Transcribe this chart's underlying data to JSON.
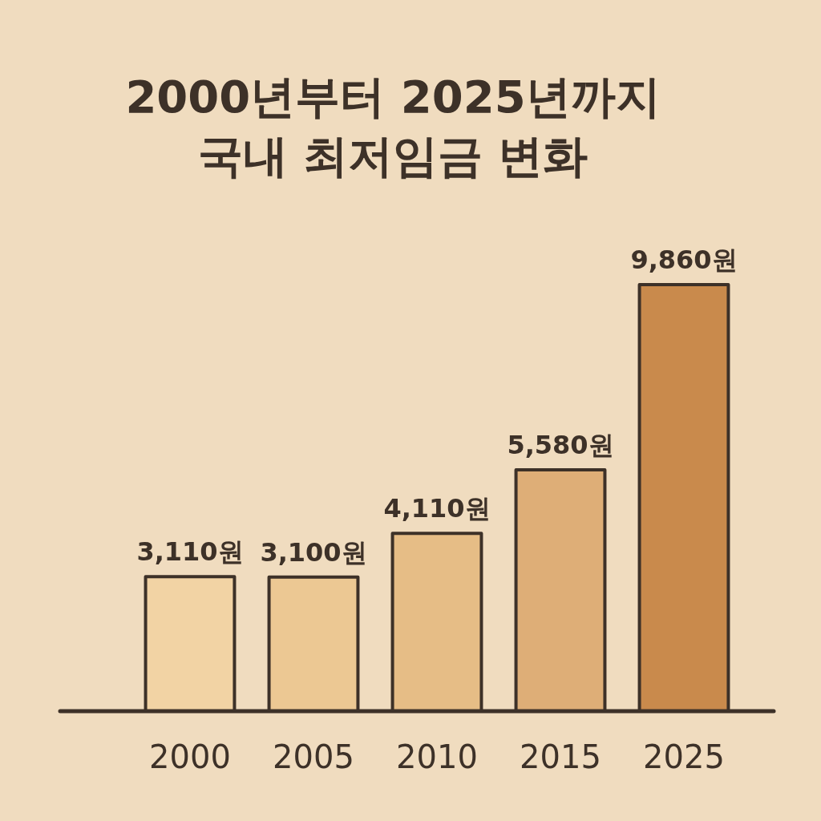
{
  "chart_data": {
    "type": "bar",
    "title": "2000년부터 2025년까지\n국내 최저임금 변화",
    "categories": [
      "2000",
      "2005",
      "2010",
      "2015",
      "2025"
    ],
    "values": [
      3110,
      3100,
      4110,
      5580,
      9860
    ],
    "colors": [
      "#f2d3a4",
      "#ecc893",
      "#e6bd86",
      "#deae77",
      "#c98a4c"
    ],
    "value_labels": [
      "3,110원",
      "3,100원",
      "4,110원",
      "5,580원",
      "9,860원"
    ],
    "relative": false
  }
}
